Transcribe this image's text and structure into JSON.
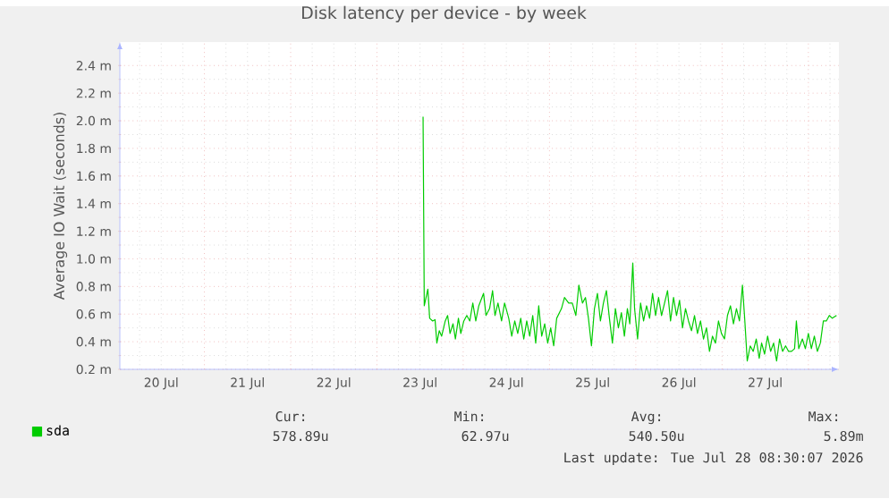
{
  "chart_data": {
    "type": "line",
    "title": "Disk latency per device - by week",
    "ylabel": "Average IO Wait (seconds)",
    "xlim": [
      "2026-07-20T00:30",
      "2026-07-28T08:30"
    ],
    "xticks": [
      {
        "value": "2026-07-20T12:00",
        "label": "20 Jul"
      },
      {
        "value": "2026-07-21T12:00",
        "label": "21 Jul"
      },
      {
        "value": "2026-07-22T12:00",
        "label": "22 Jul"
      },
      {
        "value": "2026-07-23T12:00",
        "label": "23 Jul"
      },
      {
        "value": "2026-07-24T12:00",
        "label": "24 Jul"
      },
      {
        "value": "2026-07-25T12:00",
        "label": "25 Jul"
      },
      {
        "value": "2026-07-26T12:00",
        "label": "26 Jul"
      },
      {
        "value": "2026-07-27T12:00",
        "label": "27 Jul"
      }
    ],
    "ylim": [
      0.2,
      2.57
    ],
    "yticks": [
      {
        "value": 0.2,
        "label": "0.2 m"
      },
      {
        "value": 0.4,
        "label": "0.4 m"
      },
      {
        "value": 0.6,
        "label": "0.6 m"
      },
      {
        "value": 0.8,
        "label": "0.8 m"
      },
      {
        "value": 1.0,
        "label": "1.0 m"
      },
      {
        "value": 1.2,
        "label": "1.2 m"
      },
      {
        "value": 1.4,
        "label": "1.4 m"
      },
      {
        "value": 1.6,
        "label": "1.6 m"
      },
      {
        "value": 1.8,
        "label": "1.8 m"
      },
      {
        "value": 2.0,
        "label": "2.0 m"
      },
      {
        "value": 2.2,
        "label": "2.2 m"
      },
      {
        "value": 2.4,
        "label": "2.4 m"
      }
    ],
    "grid": true,
    "legend": "bottom",
    "annotations": [
      "Cur:",
      "Min:",
      "Avg:",
      "Max:",
      "578.89u",
      "62.97u",
      "540.50u",
      "5.89m",
      "Last update: Tue Jul 28 08:30:07 2026"
    ],
    "series": [
      {
        "name": "sda",
        "color": "#00cc00",
        "x": [
          "2026-07-23T12:50",
          "2026-07-23T13:10",
          "2026-07-23T14:10",
          "2026-07-23T14:40",
          "2026-07-23T15:30",
          "2026-07-23T16:10",
          "2026-07-23T16:40",
          "2026-07-23T17:20",
          "2026-07-23T18:00",
          "2026-07-23T19:00",
          "2026-07-23T19:40",
          "2026-07-23T20:20",
          "2026-07-23T21:10",
          "2026-07-23T21:50",
          "2026-07-23T22:40",
          "2026-07-23T23:20",
          "2026-07-24T00:10",
          "2026-07-24T01:00",
          "2026-07-24T01:50",
          "2026-07-24T02:40",
          "2026-07-24T03:30",
          "2026-07-24T04:20",
          "2026-07-24T05:40",
          "2026-07-24T06:20",
          "2026-07-24T07:20",
          "2026-07-24T08:10",
          "2026-07-24T08:50",
          "2026-07-24T09:40",
          "2026-07-24T10:40",
          "2026-07-24T11:30",
          "2026-07-24T12:40",
          "2026-07-24T13:30",
          "2026-07-24T14:20",
          "2026-07-24T15:10",
          "2026-07-24T16:00",
          "2026-07-24T16:50",
          "2026-07-24T17:40",
          "2026-07-24T18:30",
          "2026-07-24T19:20",
          "2026-07-24T20:10",
          "2026-07-24T21:00",
          "2026-07-24T21:50",
          "2026-07-24T22:40",
          "2026-07-24T23:30",
          "2026-07-25T00:20",
          "2026-07-25T01:10",
          "2026-07-25T02:00",
          "2026-07-25T03:20",
          "2026-07-25T04:10",
          "2026-07-25T05:20",
          "2026-07-25T06:20",
          "2026-07-25T07:20",
          "2026-07-25T08:10",
          "2026-07-25T09:10",
          "2026-07-25T10:00",
          "2026-07-25T10:50",
          "2026-07-25T11:40",
          "2026-07-25T12:30",
          "2026-07-25T13:20",
          "2026-07-25T14:10",
          "2026-07-25T15:00",
          "2026-07-25T15:50",
          "2026-07-25T16:40",
          "2026-07-25T17:30",
          "2026-07-25T18:20",
          "2026-07-25T19:10",
          "2026-07-25T20:00",
          "2026-07-25T20:50",
          "2026-07-25T21:40",
          "2026-07-25T22:20",
          "2026-07-25T23:10",
          "2026-07-25T23:40",
          "2026-07-26T00:30",
          "2026-07-26T01:20",
          "2026-07-26T02:10",
          "2026-07-26T03:00",
          "2026-07-26T03:50",
          "2026-07-26T04:40",
          "2026-07-26T05:30",
          "2026-07-26T06:20",
          "2026-07-26T07:10",
          "2026-07-26T08:00",
          "2026-07-26T08:50",
          "2026-07-26T09:40",
          "2026-07-26T10:30",
          "2026-07-26T11:20",
          "2026-07-26T12:10",
          "2026-07-26T13:00",
          "2026-07-26T13:50",
          "2026-07-26T14:40",
          "2026-07-26T15:30",
          "2026-07-26T16:20",
          "2026-07-26T17:10",
          "2026-07-26T18:00",
          "2026-07-26T18:50",
          "2026-07-26T19:40",
          "2026-07-26T20:30",
          "2026-07-26T21:20",
          "2026-07-26T22:10",
          "2026-07-26T23:00",
          "2026-07-26T23:50",
          "2026-07-27T00:40",
          "2026-07-27T01:30",
          "2026-07-27T02:20",
          "2026-07-27T03:10",
          "2026-07-27T04:00",
          "2026-07-27T04:50",
          "2026-07-27T05:40",
          "2026-07-27T06:20",
          "2026-07-27T07:00",
          "2026-07-27T07:50",
          "2026-07-27T08:40",
          "2026-07-27T09:30",
          "2026-07-27T10:20",
          "2026-07-27T11:00",
          "2026-07-27T11:50",
          "2026-07-27T12:40",
          "2026-07-27T13:30",
          "2026-07-27T14:20",
          "2026-07-27T15:10",
          "2026-07-27T16:00",
          "2026-07-27T16:50",
          "2026-07-27T17:40",
          "2026-07-27T18:30",
          "2026-07-27T19:20",
          "2026-07-27T20:10",
          "2026-07-27T20:40",
          "2026-07-27T21:20",
          "2026-07-27T22:20",
          "2026-07-27T23:10",
          "2026-07-28T00:00",
          "2026-07-28T00:50",
          "2026-07-28T01:40",
          "2026-07-28T02:30",
          "2026-07-28T03:20",
          "2026-07-28T04:10",
          "2026-07-28T05:00",
          "2026-07-28T05:50",
          "2026-07-28T06:40",
          "2026-07-28T07:50"
        ],
        "values": [
          2.03,
          0.66,
          0.78,
          0.57,
          0.55,
          0.56,
          0.39,
          0.48,
          0.44,
          0.55,
          0.59,
          0.46,
          0.53,
          0.42,
          0.57,
          0.46,
          0.55,
          0.59,
          0.55,
          0.68,
          0.55,
          0.66,
          0.75,
          0.59,
          0.64,
          0.77,
          0.59,
          0.68,
          0.55,
          0.68,
          0.57,
          0.44,
          0.55,
          0.46,
          0.57,
          0.42,
          0.55,
          0.44,
          0.59,
          0.39,
          0.66,
          0.44,
          0.53,
          0.39,
          0.5,
          0.37,
          0.57,
          0.64,
          0.72,
          0.68,
          0.68,
          0.59,
          0.81,
          0.68,
          0.72,
          0.57,
          0.37,
          0.64,
          0.75,
          0.55,
          0.68,
          0.77,
          0.57,
          0.39,
          0.64,
          0.5,
          0.61,
          0.44,
          0.64,
          0.53,
          0.97,
          0.64,
          0.42,
          0.68,
          0.55,
          0.66,
          0.57,
          0.75,
          0.59,
          0.72,
          0.59,
          0.68,
          0.77,
          0.55,
          0.72,
          0.59,
          0.7,
          0.5,
          0.64,
          0.55,
          0.48,
          0.59,
          0.46,
          0.55,
          0.42,
          0.5,
          0.33,
          0.44,
          0.39,
          0.55,
          0.46,
          0.42,
          0.59,
          0.66,
          0.53,
          0.64,
          0.55,
          0.81,
          0.55,
          0.26,
          0.37,
          0.33,
          0.42,
          0.28,
          0.39,
          0.31,
          0.44,
          0.33,
          0.39,
          0.26,
          0.42,
          0.33,
          0.37,
          0.33,
          0.33,
          0.35,
          0.55,
          0.35,
          0.42,
          0.35,
          0.46,
          0.35,
          0.44,
          0.33,
          0.39,
          0.55,
          0.55,
          0.59,
          0.57,
          0.59
        ]
      }
    ]
  }
}
